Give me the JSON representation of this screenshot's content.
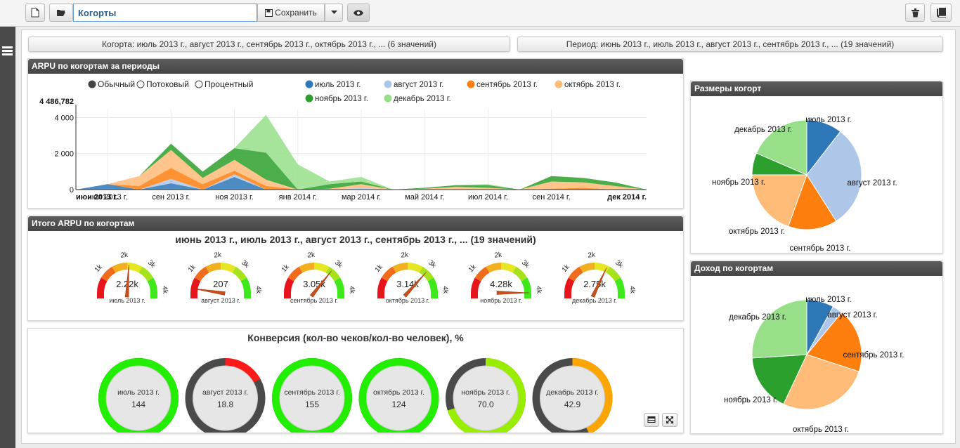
{
  "toolbar": {
    "report_name": "Когорты",
    "save_label": "Сохранить"
  },
  "filters": {
    "cohort": "Когорта: июль 2013 г., август 2013 г., сентябрь 2013 г., октябрь 2013 г., ... (6 значений)",
    "period": "Период: июнь 2013 г., июль 2013 г., август 2013 г., сентябрь 2013 г., ... (19 значений)"
  },
  "arpu_panel": {
    "title": "ARPU по когортам за периоды",
    "modes": [
      "Обычный",
      "Потоковый",
      "Процентный"
    ],
    "selected_mode": "Обычный"
  },
  "colors": {
    "июль 2013 г.": "#2e78b7",
    "август 2013 г.": "#aec7e8",
    "сентябрь 2013 г.": "#ff7f0e",
    "октябрь 2013 г.": "#ffbb78",
    "ноябрь 2013 г.": "#2ca02c",
    "декабрь 2013 г.": "#98df8a"
  },
  "chart_data": [
    {
      "type": "area",
      "title": "ARPU по когортам за периоды",
      "x": [
        "июн 2013 г.",
        "июл 2013 г.",
        "авг 2013 г.",
        "сен 2013 г.",
        "окт 2013 г.",
        "ноя 2013 г.",
        "дек 2013 г.",
        "янв 2014 г.",
        "фев 2014 г.",
        "мар 2014 г.",
        "апр 2014 г.",
        "май 2014 г.",
        "июн 2014 г.",
        "июл 2014 г.",
        "авг 2014 г.",
        "сен 2014 г.",
        "окт 2014 г.",
        "ноя 2014 г.",
        "дек 2014 г."
      ],
      "x_tick_labels": [
        "июн 2013 г.",
        "июл 2013 г.",
        "сен 2013 г.",
        "ноя 2013 г.",
        "янв 2014 г.",
        "мар 2014 г.",
        "май 2014 г.",
        "июл 2014 г.",
        "сен 2014 г.",
        "дек 2014 г."
      ],
      "y_ticks": [
        "0",
        "2 000",
        "4 000"
      ],
      "y_max_label": "4 486,782",
      "ylim": [
        0,
        4486.782
      ],
      "stacked": true,
      "legend": "top",
      "series": [
        {
          "name": "июль 2013 г.",
          "values": [
            0,
            300,
            0,
            350,
            0,
            700,
            0,
            0,
            0,
            0,
            0,
            0,
            0,
            0,
            0,
            0,
            0,
            0,
            0
          ]
        },
        {
          "name": "август 2013 г.",
          "values": [
            0,
            0,
            0,
            250,
            0,
            150,
            0,
            0,
            0,
            100,
            0,
            0,
            0,
            0,
            0,
            0,
            0,
            0,
            0
          ]
        },
        {
          "name": "сентябрь 2013 г.",
          "values": [
            0,
            0,
            200,
            600,
            300,
            200,
            200,
            0,
            0,
            0,
            0,
            0,
            0,
            0,
            0,
            50,
            100,
            0,
            0
          ]
        },
        {
          "name": "октябрь 2013 г.",
          "values": [
            0,
            0,
            550,
            1000,
            350,
            600,
            350,
            0,
            50,
            200,
            0,
            50,
            150,
            100,
            0,
            400,
            300,
            200,
            0
          ]
        },
        {
          "name": "ноябрь 2013 г.",
          "values": [
            0,
            0,
            0,
            350,
            350,
            650,
            1500,
            0,
            250,
            150,
            0,
            50,
            100,
            150,
            0,
            300,
            250,
            200,
            0
          ]
        },
        {
          "name": "декабрь 2013 г.",
          "values": [
            0,
            0,
            0,
            0,
            0,
            0,
            2100,
            1400,
            150,
            250,
            0,
            0,
            0,
            50,
            0,
            0,
            0,
            0,
            0
          ]
        }
      ]
    },
    {
      "type": "pie",
      "title": "Размеры когорт",
      "categories": [
        "июль 2013 г.",
        "август 2013 г.",
        "сентябрь 2013 г.",
        "октябрь 2013 г.",
        "ноябрь 2013 г.",
        "декабрь 2013 г."
      ],
      "values": [
        10.5,
        30.5,
        14.5,
        19.5,
        6.5,
        18.5
      ]
    },
    {
      "type": "pie",
      "title": "Доход по когортам",
      "categories": [
        "июль 2013 г.",
        "август 2013 г.",
        "сентябрь 2013 г.",
        "октябрь 2013 г.",
        "ноябрь 2013 г.",
        "декабрь 2013 г."
      ],
      "values": [
        8,
        3,
        19,
        27,
        17,
        26
      ]
    }
  ],
  "gauges": {
    "title": "Итого ARPU по когортам",
    "subtitle": "июнь 2013 г., июль 2013 г., август 2013 г., сентябрь 2013 г., ... (19 значений)",
    "scale_labels": [
      "1k",
      "2k",
      "3k",
      "4k"
    ],
    "max": 4280,
    "items": [
      {
        "label": "июль 2013 г.",
        "value_text": "2.22k",
        "value": 2220
      },
      {
        "label": "август 2013 г.",
        "value_text": "207",
        "value": 207
      },
      {
        "label": "сентябрь 2013 г.",
        "value_text": "3.05k",
        "value": 3050
      },
      {
        "label": "октябрь 2013 г.",
        "value_text": "3.14k",
        "value": 3140
      },
      {
        "label": "ноябрь 2013 г.",
        "value_text": "4.28k",
        "value": 4280
      },
      {
        "label": "декабрь 2013 г.",
        "value_text": "2.75k",
        "value": 2750
      }
    ]
  },
  "conversion": {
    "title": "Конверсия (кол-во чеков/кол-во человек), %",
    "items": [
      {
        "label": "июль 2013 г.",
        "value": "144",
        "fraction": 1.0,
        "color": "#22ee00"
      },
      {
        "label": "август 2013 г.",
        "value": "18.8",
        "fraction": 0.17,
        "color": "#ff1a1a"
      },
      {
        "label": "сентябрь 2013 г.",
        "value": "155",
        "fraction": 1.0,
        "color": "#22ee00"
      },
      {
        "label": "октябрь 2013 г.",
        "value": "124",
        "fraction": 1.0,
        "color": "#22ee00"
      },
      {
        "label": "ноябрь 2013 г.",
        "value": "70.0",
        "fraction": 0.7,
        "color": "#99ee00"
      },
      {
        "label": "декабрь 2013 г.",
        "value": "42.9",
        "fraction": 0.43,
        "color": "#ffa500"
      }
    ]
  }
}
